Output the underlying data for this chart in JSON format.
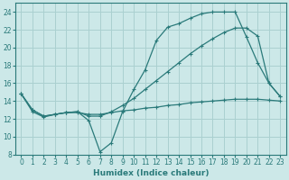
{
  "xlabel": "Humidex (Indice chaleur)",
  "bg_color": "#cce8e8",
  "grid_color": "#aad0d0",
  "line_color": "#2a7a7a",
  "spine_color": "#2a7a7a",
  "xlim": [
    -0.5,
    23.5
  ],
  "ylim": [
    8,
    25
  ],
  "xticks": [
    0,
    1,
    2,
    3,
    4,
    5,
    6,
    7,
    8,
    9,
    10,
    11,
    12,
    13,
    14,
    15,
    16,
    17,
    18,
    19,
    20,
    21,
    22,
    23
  ],
  "yticks": [
    8,
    10,
    12,
    14,
    16,
    18,
    20,
    22,
    24
  ],
  "line1_x": [
    0,
    1,
    2,
    3,
    4,
    5,
    6,
    7,
    8,
    9,
    10,
    11,
    12,
    13,
    14,
    15,
    16,
    17,
    18,
    19,
    20,
    21,
    22,
    23
  ],
  "line1_y": [
    14.8,
    13.0,
    12.3,
    12.5,
    12.7,
    12.8,
    11.8,
    8.3,
    9.3,
    12.8,
    15.3,
    17.5,
    20.8,
    22.3,
    22.7,
    23.3,
    23.8,
    24.0,
    24.0,
    24.0,
    21.2,
    18.3,
    16.0,
    14.5
  ],
  "line2_x": [
    0,
    1,
    2,
    3,
    4,
    5,
    6,
    7,
    8,
    9,
    10,
    11,
    12,
    13,
    14,
    15,
    16,
    17,
    18,
    19,
    20,
    21,
    22,
    23
  ],
  "line2_y": [
    14.8,
    13.0,
    12.3,
    12.5,
    12.7,
    12.8,
    12.3,
    12.3,
    12.8,
    13.5,
    14.3,
    15.3,
    16.3,
    17.3,
    18.3,
    19.3,
    20.2,
    21.0,
    21.7,
    22.2,
    22.2,
    21.3,
    16.0,
    14.5
  ],
  "line3_x": [
    0,
    1,
    2,
    3,
    4,
    5,
    6,
    7,
    8,
    9,
    10,
    11,
    12,
    13,
    14,
    15,
    16,
    17,
    18,
    19,
    20,
    21,
    22,
    23
  ],
  "line3_y": [
    14.8,
    12.8,
    12.2,
    12.5,
    12.7,
    12.7,
    12.5,
    12.5,
    12.7,
    12.9,
    13.0,
    13.2,
    13.3,
    13.5,
    13.6,
    13.8,
    13.9,
    14.0,
    14.1,
    14.2,
    14.2,
    14.2,
    14.1,
    14.0
  ],
  "tick_fontsize": 5.5,
  "xlabel_fontsize": 6.5,
  "marker_size": 2.5,
  "line_width": 0.9
}
